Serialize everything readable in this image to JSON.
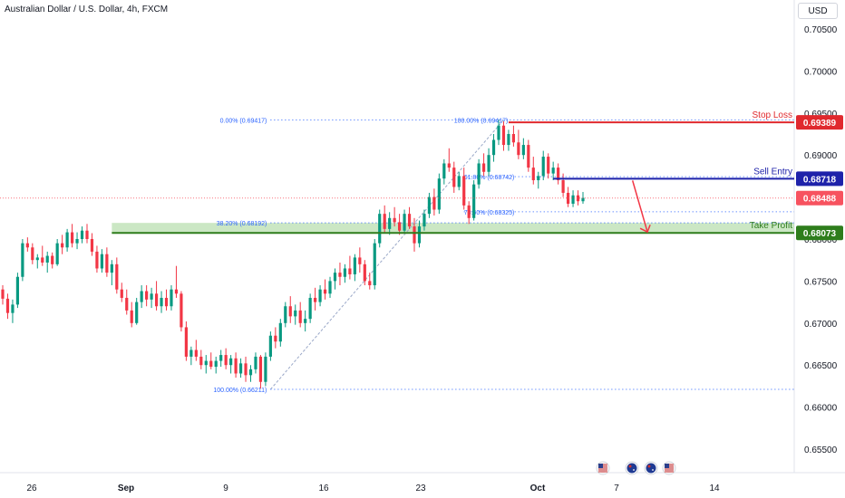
{
  "header": {
    "symbol_title": "Australian Dollar / U.S. Dollar, 4h, FXCM",
    "currency_button": "USD"
  },
  "colors": {
    "up": "#089981",
    "down": "#f23645",
    "stop_loss": "#e0292e",
    "sell_entry": "#1e22aa",
    "take_profit": "#2e7d1c",
    "current": "#f7525f",
    "fib": "#2962ff",
    "zone": "#b9dfb0"
  },
  "chart_data": {
    "type": "candlestick",
    "instrument": "AUDUSD",
    "timeframe": "4h",
    "y_axis": {
      "ylim": [
        0.652,
        0.707
      ],
      "ticks": [
        "0.65500",
        "0.66000",
        "0.66500",
        "0.67000",
        "0.67500",
        "0.68000",
        "0.68500",
        "0.69000",
        "0.69500",
        "0.70000",
        "0.70500"
      ],
      "tick_values": [
        0.655,
        0.66,
        0.665,
        0.67,
        0.675,
        0.68,
        0.685,
        0.69,
        0.695,
        0.7,
        0.705
      ]
    },
    "x_axis": {
      "ticks": [
        "26",
        "Sep",
        "9",
        "16",
        "23",
        "Oct",
        "7",
        "14"
      ],
      "bold_ticks": [
        "Sep",
        "Oct"
      ],
      "tick_bar_index": [
        0,
        18,
        36,
        54,
        72,
        90,
        108,
        126
      ]
    },
    "candles": [
      [
        0.674,
        0.6745,
        0.6722,
        0.6729
      ],
      [
        0.6729,
        0.6735,
        0.6705,
        0.6712
      ],
      [
        0.6712,
        0.6728,
        0.67,
        0.6722
      ],
      [
        0.6722,
        0.676,
        0.6718,
        0.6755
      ],
      [
        0.6755,
        0.68,
        0.675,
        0.6795
      ],
      [
        0.6795,
        0.6802,
        0.6785,
        0.679
      ],
      [
        0.679,
        0.6795,
        0.677,
        0.6775
      ],
      [
        0.6775,
        0.6782,
        0.6765,
        0.6778
      ],
      [
        0.6778,
        0.6792,
        0.6768,
        0.6772
      ],
      [
        0.6772,
        0.6785,
        0.676,
        0.678
      ],
      [
        0.678,
        0.6784,
        0.6765,
        0.677
      ],
      [
        0.677,
        0.68,
        0.6768,
        0.6795
      ],
      [
        0.6795,
        0.6805,
        0.6782,
        0.679
      ],
      [
        0.679,
        0.6812,
        0.6785,
        0.6808
      ],
      [
        0.6808,
        0.6818,
        0.679,
        0.6795
      ],
      [
        0.6795,
        0.6808,
        0.6788,
        0.68
      ],
      [
        0.68,
        0.6815,
        0.6795,
        0.681
      ],
      [
        0.681,
        0.6818,
        0.6795,
        0.68
      ],
      [
        0.68,
        0.6807,
        0.678,
        0.6785
      ],
      [
        0.6785,
        0.6792,
        0.676,
        0.6765
      ],
      [
        0.6765,
        0.6788,
        0.676,
        0.6782
      ],
      [
        0.6782,
        0.679,
        0.6755,
        0.676
      ],
      [
        0.676,
        0.6775,
        0.6745,
        0.677
      ],
      [
        0.677,
        0.6778,
        0.6735,
        0.674
      ],
      [
        0.674,
        0.6748,
        0.6725,
        0.673
      ],
      [
        0.673,
        0.674,
        0.671,
        0.6715
      ],
      [
        0.6715,
        0.6725,
        0.6695,
        0.67
      ],
      [
        0.67,
        0.673,
        0.6698,
        0.6725
      ],
      [
        0.6725,
        0.6745,
        0.6718,
        0.6738
      ],
      [
        0.6738,
        0.6745,
        0.672,
        0.6728
      ],
      [
        0.6728,
        0.6742,
        0.6718,
        0.6735
      ],
      [
        0.6735,
        0.675,
        0.6715,
        0.672
      ],
      [
        0.672,
        0.6738,
        0.6712,
        0.673
      ],
      [
        0.673,
        0.674,
        0.6715,
        0.672
      ],
      [
        0.672,
        0.6745,
        0.6715,
        0.674
      ],
      [
        0.674,
        0.6768,
        0.673,
        0.6735
      ],
      [
        0.6735,
        0.6738,
        0.669,
        0.6695
      ],
      [
        0.6695,
        0.6702,
        0.6655,
        0.666
      ],
      [
        0.666,
        0.6672,
        0.665,
        0.6668
      ],
      [
        0.6668,
        0.668,
        0.6655,
        0.666
      ],
      [
        0.666,
        0.6668,
        0.6645,
        0.665
      ],
      [
        0.665,
        0.6662,
        0.664,
        0.6655
      ],
      [
        0.6655,
        0.6665,
        0.6645,
        0.6648
      ],
      [
        0.6648,
        0.666,
        0.664,
        0.6655
      ],
      [
        0.6655,
        0.6668,
        0.6648,
        0.6662
      ],
      [
        0.6662,
        0.667,
        0.6645,
        0.665
      ],
      [
        0.665,
        0.6662,
        0.664,
        0.6658
      ],
      [
        0.6658,
        0.6665,
        0.6635,
        0.664
      ],
      [
        0.664,
        0.6658,
        0.6635,
        0.6652
      ],
      [
        0.6652,
        0.666,
        0.663,
        0.6638
      ],
      [
        0.6638,
        0.665,
        0.663,
        0.6645
      ],
      [
        0.6645,
        0.6665,
        0.664,
        0.666
      ],
      [
        0.666,
        0.6662,
        0.6622,
        0.663
      ],
      [
        0.663,
        0.6665,
        0.6625,
        0.666
      ],
      [
        0.666,
        0.669,
        0.6655,
        0.6685
      ],
      [
        0.6685,
        0.6695,
        0.667,
        0.6678
      ],
      [
        0.6678,
        0.6705,
        0.6672,
        0.67
      ],
      [
        0.67,
        0.6725,
        0.6695,
        0.672
      ],
      [
        0.672,
        0.6732,
        0.67,
        0.6708
      ],
      [
        0.6708,
        0.6722,
        0.6698,
        0.6715
      ],
      [
        0.6715,
        0.6725,
        0.6695,
        0.67
      ],
      [
        0.67,
        0.6715,
        0.669,
        0.6705
      ],
      [
        0.6705,
        0.6735,
        0.67,
        0.673
      ],
      [
        0.673,
        0.6742,
        0.6715,
        0.6725
      ],
      [
        0.6725,
        0.6745,
        0.672,
        0.674
      ],
      [
        0.674,
        0.6752,
        0.6728,
        0.6735
      ],
      [
        0.6735,
        0.6755,
        0.673,
        0.675
      ],
      [
        0.675,
        0.6765,
        0.674,
        0.676
      ],
      [
        0.676,
        0.6772,
        0.6745,
        0.6755
      ],
      [
        0.6755,
        0.677,
        0.6748,
        0.6765
      ],
      [
        0.6765,
        0.678,
        0.6752,
        0.6758
      ],
      [
        0.6758,
        0.6782,
        0.675,
        0.6778
      ],
      [
        0.6778,
        0.679,
        0.676,
        0.677
      ],
      [
        0.677,
        0.6775,
        0.6745,
        0.675
      ],
      [
        0.675,
        0.676,
        0.674,
        0.6745
      ],
      [
        0.6745,
        0.68,
        0.674,
        0.6795
      ],
      [
        0.6795,
        0.6835,
        0.679,
        0.683
      ],
      [
        0.683,
        0.684,
        0.6808,
        0.6812
      ],
      [
        0.6812,
        0.6832,
        0.6805,
        0.6825
      ],
      [
        0.6825,
        0.6838,
        0.6815,
        0.682
      ],
      [
        0.682,
        0.683,
        0.6805,
        0.681
      ],
      [
        0.681,
        0.6835,
        0.6808,
        0.683
      ],
      [
        0.683,
        0.6838,
        0.6812,
        0.6815
      ],
      [
        0.6815,
        0.6825,
        0.6785,
        0.6795
      ],
      [
        0.6795,
        0.6822,
        0.679,
        0.6815
      ],
      [
        0.6815,
        0.6835,
        0.681,
        0.683
      ],
      [
        0.683,
        0.6855,
        0.6825,
        0.685
      ],
      [
        0.685,
        0.686,
        0.6828,
        0.6835
      ],
      [
        0.6835,
        0.6878,
        0.683,
        0.6872
      ],
      [
        0.6872,
        0.6895,
        0.6865,
        0.689
      ],
      [
        0.689,
        0.6908,
        0.688,
        0.6885
      ],
      [
        0.6885,
        0.6892,
        0.6855,
        0.6862
      ],
      [
        0.6862,
        0.688,
        0.6858,
        0.6875
      ],
      [
        0.6875,
        0.6885,
        0.6835,
        0.684
      ],
      [
        0.684,
        0.6845,
        0.6818,
        0.6825
      ],
      [
        0.6825,
        0.687,
        0.6822,
        0.6865
      ],
      [
        0.6865,
        0.6895,
        0.686,
        0.689
      ],
      [
        0.689,
        0.6902,
        0.6875,
        0.688
      ],
      [
        0.688,
        0.6908,
        0.6875,
        0.69
      ],
      [
        0.69,
        0.6925,
        0.6892,
        0.6918
      ],
      [
        0.6918,
        0.6942,
        0.6912,
        0.6935
      ],
      [
        0.6935,
        0.694,
        0.6905,
        0.6912
      ],
      [
        0.6912,
        0.693,
        0.6905,
        0.6925
      ],
      [
        0.6925,
        0.6935,
        0.691,
        0.6915
      ],
      [
        0.6915,
        0.693,
        0.6895,
        0.69
      ],
      [
        0.69,
        0.692,
        0.6895,
        0.6912
      ],
      [
        0.6912,
        0.6918,
        0.688,
        0.6885
      ],
      [
        0.6885,
        0.6898,
        0.6865,
        0.687
      ],
      [
        0.687,
        0.688,
        0.686,
        0.6875
      ],
      [
        0.6875,
        0.6905,
        0.687,
        0.6898
      ],
      [
        0.6898,
        0.6902,
        0.6872,
        0.6878
      ],
      [
        0.6878,
        0.6892,
        0.687,
        0.6885
      ],
      [
        0.6885,
        0.689,
        0.6865,
        0.687
      ],
      [
        0.687,
        0.6878,
        0.685,
        0.6855
      ],
      [
        0.6855,
        0.6862,
        0.6838,
        0.6842
      ],
      [
        0.6842,
        0.6858,
        0.6838,
        0.6852
      ],
      [
        0.6852,
        0.6858,
        0.684,
        0.6845
      ],
      [
        0.6845,
        0.6856,
        0.6842,
        0.6849
      ]
    ],
    "levels": [
      {
        "name": "Stop Loss",
        "value": 0.69389,
        "price_label": "0.69389"
      },
      {
        "name": "Sell Entry",
        "value": 0.68718,
        "price_label": "0.68718"
      },
      {
        "name": "Take Profit",
        "value": 0.68073,
        "price_label": "0.68073"
      },
      {
        "name": "current",
        "value": 0.68488,
        "price_label": "0.68488"
      }
    ],
    "take_profit_zone": [
      0.68073,
      0.68192
    ],
    "fib_right": [
      {
        "label": "100.00% (0.69417)",
        "value": 0.69417
      },
      {
        "label": "61.80% (0.68742)",
        "value": 0.68742
      },
      {
        "label": "78.60% (0.68325)",
        "value": 0.68325
      }
    ],
    "fib_left": [
      {
        "label": "0.00% (0.69417)",
        "value": 0.69417
      },
      {
        "label": "38.20% (0.68192)",
        "value": 0.68192
      },
      {
        "label": "100.00% (0.66211)",
        "value": 0.66211
      }
    ],
    "projection_arrow": {
      "from": 0.68718,
      "to": 0.68073
    }
  },
  "events": {
    "icons": [
      "us-flag-icon",
      "au-flag-icon",
      "au-flag-icon",
      "us-flag-icon"
    ]
  }
}
